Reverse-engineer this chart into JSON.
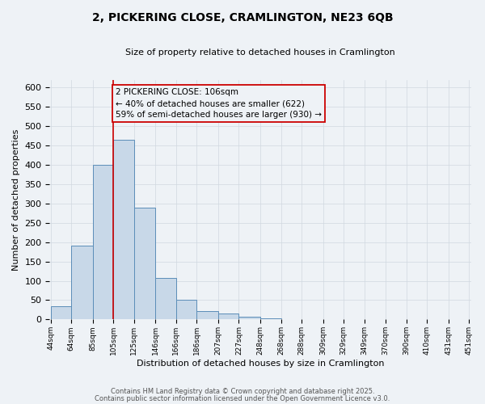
{
  "title": "2, PICKERING CLOSE, CRAMLINGTON, NE23 6QB",
  "subtitle": "Size of property relative to detached houses in Cramlington",
  "xlabel": "Distribution of detached houses by size in Cramlington",
  "ylabel": "Number of detached properties",
  "bar_left_edges": [
    44,
    64,
    85,
    105,
    125,
    146,
    166,
    186,
    207,
    227,
    248,
    268,
    288,
    309,
    329,
    349,
    370,
    390,
    410,
    431
  ],
  "bar_widths": [
    20,
    21,
    20,
    20,
    21,
    20,
    20,
    21,
    20,
    21,
    20,
    20,
    21,
    20,
    20,
    21,
    20,
    20,
    21,
    20
  ],
  "bar_heights": [
    35,
    190,
    400,
    465,
    290,
    107,
    50,
    22,
    15,
    8,
    2,
    0,
    0,
    0,
    0,
    1,
    0,
    0,
    0,
    0
  ],
  "tick_labels": [
    "44sqm",
    "64sqm",
    "85sqm",
    "105sqm",
    "125sqm",
    "146sqm",
    "166sqm",
    "186sqm",
    "207sqm",
    "227sqm",
    "248sqm",
    "268sqm",
    "288sqm",
    "309sqm",
    "329sqm",
    "349sqm",
    "370sqm",
    "390sqm",
    "410sqm",
    "431sqm",
    "451sqm"
  ],
  "tick_positions": [
    44,
    64,
    85,
    105,
    125,
    146,
    166,
    186,
    207,
    227,
    248,
    268,
    288,
    309,
    329,
    349,
    370,
    390,
    410,
    431,
    451
  ],
  "bar_color": "#c8d8e8",
  "bar_edge_color": "#5b8db8",
  "grid_color": "#d0d8e0",
  "vline_x": 105,
  "vline_color": "#cc0000",
  "ylim": [
    0,
    620
  ],
  "yticks": [
    0,
    50,
    100,
    150,
    200,
    250,
    300,
    350,
    400,
    450,
    500,
    550,
    600
  ],
  "annotation_text_line1": "2 PICKERING CLOSE: 106sqm",
  "annotation_text_line2": "← 40% of detached houses are smaller (622)",
  "annotation_text_line3": "59% of semi-detached houses are larger (930) →",
  "footer_line1": "Contains HM Land Registry data © Crown copyright and database right 2025.",
  "footer_line2": "Contains public sector information licensed under the Open Government Licence v3.0.",
  "bg_color": "#eef2f6"
}
